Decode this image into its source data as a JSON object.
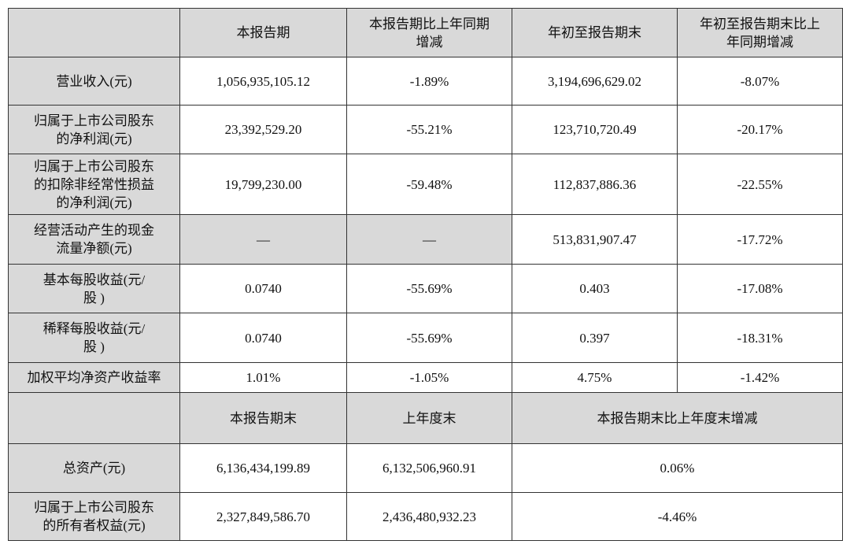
{
  "table": {
    "header": [
      "",
      "本报告期",
      "本报告期比上年同期\n增减",
      "年初至报告期末",
      "年初至报告期末比上\n年同期增减"
    ],
    "rows": [
      [
        "营业收入(元)",
        "1,056,935,105.12",
        "-1.89%",
        "3,194,696,629.02",
        "-8.07%"
      ],
      [
        "归属于上市公司股东\n的净利润(元)",
        "23,392,529.20",
        "-55.21%",
        "123,710,720.49",
        "-20.17%"
      ],
      [
        "归属于上市公司股东\n的扣除非经常性损益\n的净利润(元)",
        "19,799,230.00",
        "-59.48%",
        "112,837,886.36",
        "-22.55%"
      ],
      [
        "经营活动产生的现金\n流量净额(元)",
        "—",
        "—",
        "513,831,907.47",
        "-17.72%"
      ],
      [
        "基本每股收益(元/\n股 )",
        "0.0740",
        "-55.69%",
        "0.403",
        "-17.08%"
      ],
      [
        "稀释每股收益(元/\n股 )",
        "0.0740",
        "-55.69%",
        "0.397",
        "-18.31%"
      ],
      [
        "加权平均净资产收益率",
        "1.01%",
        "-1.05%",
        "4.75%",
        "-1.42%"
      ]
    ],
    "header2": [
      "",
      "本报告期末",
      "上年度末",
      "本报告期末比上年度末增减"
    ],
    "rows2": [
      [
        "总资产(元)",
        "6,136,434,199.89",
        "6,132,506,960.91",
        "0.06%"
      ],
      [
        "归属于上市公司股东\n的所有者权益(元)",
        "2,327,849,586.70",
        "2,436,480,932.23",
        "-4.46%"
      ]
    ]
  }
}
